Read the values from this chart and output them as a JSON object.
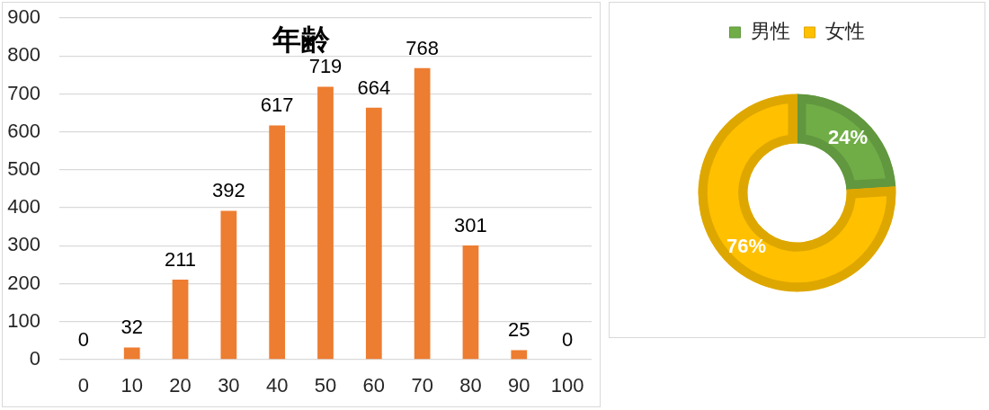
{
  "chart_data": [
    {
      "type": "bar",
      "title": "年齢",
      "categories": [
        "0",
        "10",
        "20",
        "30",
        "40",
        "50",
        "60",
        "70",
        "80",
        "90",
        "100"
      ],
      "values": [
        0,
        32,
        211,
        392,
        617,
        719,
        664,
        768,
        301,
        25,
        0
      ],
      "color": "#ed7d31",
      "ylim": [
        0,
        900
      ],
      "yticks": [
        0,
        100,
        200,
        300,
        400,
        500,
        600,
        700,
        800,
        900
      ],
      "grid": "y",
      "data_labels": true
    },
    {
      "type": "donut",
      "categories": [
        "男性",
        "女性"
      ],
      "values": [
        24,
        76
      ],
      "colors": [
        "#70ad47",
        "#ffc000"
      ],
      "legend": "top",
      "value_labels": [
        "24%",
        "76%"
      ]
    }
  ]
}
